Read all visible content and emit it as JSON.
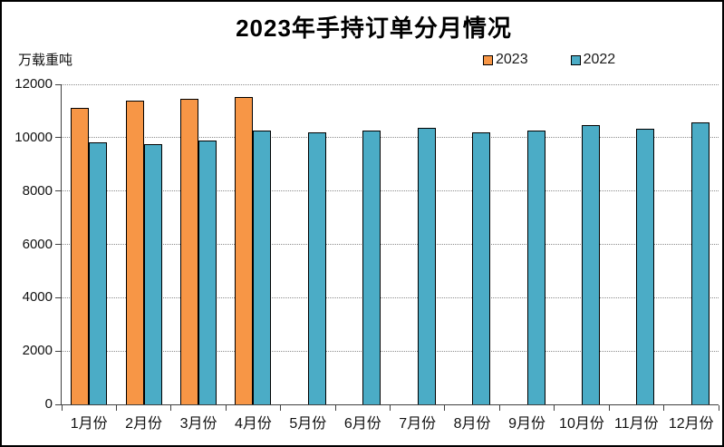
{
  "title": "2023年手持订单分月情况",
  "unit_label": "万载重吨",
  "legend": {
    "items": [
      {
        "label": "2023",
        "color": "#F79646"
      },
      {
        "label": "2022",
        "color": "#4BACC6"
      }
    ]
  },
  "chart_data": {
    "type": "bar",
    "title": "2023年手持订单分月情况",
    "ylabel": "万载重吨",
    "xlabel": "",
    "categories": [
      "1月份",
      "2月份",
      "3月份",
      "4月份",
      "5月份",
      "6月份",
      "7月份",
      "8月份",
      "9月份",
      "10月份",
      "11月份",
      "12月份"
    ],
    "series": [
      {
        "name": "2023",
        "color": "#F79646",
        "values": [
          11110,
          11400,
          11450,
          11520,
          null,
          null,
          null,
          null,
          null,
          null,
          null,
          null
        ]
      },
      {
        "name": "2022",
        "color": "#4BACC6",
        "values": [
          9830,
          9770,
          9900,
          10250,
          10210,
          10280,
          10370,
          10200,
          10260,
          10460,
          10350,
          10560
        ]
      }
    ],
    "ylim": [
      0,
      12000
    ],
    "ytick_interval": 2000,
    "yticks": [
      0,
      2000,
      4000,
      6000,
      8000,
      10000,
      12000
    ],
    "grid": "horizontal-dotted",
    "legend_position": "top-right",
    "bar_border_color": "#000000",
    "axis_color": "#404040",
    "gridline_color": "#8c8c8c"
  }
}
